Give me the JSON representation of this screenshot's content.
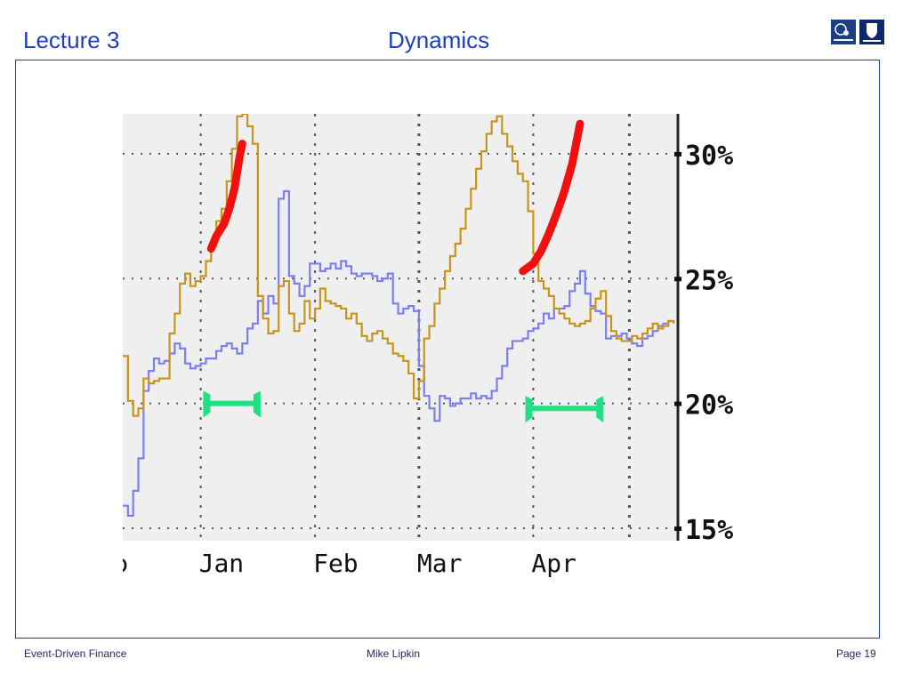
{
  "header": {
    "lecture": "Lecture 3",
    "title": "Dynamics"
  },
  "footer": {
    "course": "Event-Driven Finance",
    "author": "Mike Lipkin",
    "page": "Page 19"
  },
  "chart_data": {
    "type": "line",
    "title": "",
    "xlabel": "",
    "ylabel": "",
    "x_ticks": [
      "Jan",
      "Feb",
      "Mar",
      "Apr"
    ],
    "x_tick_positions": [
      15,
      37,
      57,
      79
    ],
    "y_ticks": [
      "30%",
      "25%",
      "20%",
      "15%"
    ],
    "y_tick_values": [
      30,
      25,
      20,
      15
    ],
    "xlim": [
      0,
      106.5
    ],
    "ylim": [
      14.5,
      31.6
    ],
    "grid": true,
    "series": [
      {
        "color": "#7b7ff0",
        "x": [
          0,
          1,
          2,
          3,
          4,
          5,
          6,
          7,
          8,
          9,
          10,
          11,
          12,
          13,
          14,
          15,
          16,
          17,
          18,
          19,
          20,
          21,
          22,
          23,
          24,
          25,
          26,
          27,
          28,
          29,
          30,
          31,
          32,
          33,
          34,
          35,
          36,
          37,
          38,
          39,
          40,
          41,
          42,
          43,
          44,
          45,
          46,
          47,
          48,
          49,
          50,
          51,
          52,
          53,
          54,
          55,
          56,
          57,
          58,
          59,
          60,
          61,
          62,
          63,
          64,
          65,
          66,
          67,
          68,
          69,
          70,
          71,
          72,
          73,
          74,
          75,
          76,
          77,
          78,
          79,
          80,
          81,
          82,
          83,
          84,
          85,
          86,
          87,
          88,
          89,
          90,
          91,
          92,
          93,
          94,
          95,
          96,
          97,
          98,
          99,
          100,
          101,
          102,
          103,
          104,
          105,
          106
        ],
        "values": [
          15.9,
          15.5,
          16.5,
          17.8,
          20.5,
          21.3,
          21.8,
          21.6,
          21.7,
          22.0,
          22.4,
          22.2,
          21.6,
          21.4,
          21.5,
          21.6,
          21.8,
          21.8,
          22.1,
          22.3,
          22.4,
          22.2,
          22.0,
          22.4,
          23.0,
          23.2,
          24.1,
          23.6,
          24.3,
          24.0,
          28.2,
          28.5,
          25.1,
          24.8,
          24.3,
          24.7,
          25.6,
          25.6,
          25.3,
          25.4,
          25.6,
          25.4,
          25.7,
          25.5,
          25.2,
          25.1,
          25.2,
          25.2,
          25.1,
          24.9,
          25.0,
          25.2,
          24.0,
          23.6,
          23.8,
          23.9,
          23.7,
          21.5,
          20.3,
          19.8,
          19.3,
          20.3,
          20.2,
          19.9,
          20.0,
          20.2,
          20.2,
          20.4,
          20.2,
          20.3,
          20.2,
          20.5,
          21.0,
          21.5,
          22.2,
          22.5,
          22.5,
          22.6,
          22.9,
          23.0,
          23.2,
          23.6,
          23.4,
          23.8,
          23.8,
          23.9,
          24.5,
          24.8,
          25.3,
          24.4,
          23.9,
          23.7,
          23.6,
          22.6,
          22.7,
          22.7,
          22.8,
          22.6,
          22.4,
          22.3,
          22.6,
          22.7,
          22.9,
          23.1,
          23.2,
          23.3,
          23.2
        ]
      },
      {
        "color": "#c8951c",
        "x": [
          0,
          1,
          2,
          3,
          4,
          5,
          6,
          7,
          8,
          9,
          10,
          11,
          12,
          13,
          14,
          15,
          16,
          17,
          18,
          19,
          20,
          21,
          22,
          23,
          24,
          25,
          26,
          27,
          28,
          29,
          30,
          31,
          32,
          33,
          34,
          35,
          36,
          37,
          38,
          39,
          40,
          41,
          42,
          43,
          44,
          45,
          46,
          47,
          48,
          49,
          50,
          51,
          52,
          53,
          54,
          55,
          56,
          57,
          58,
          59,
          60,
          61,
          62,
          63,
          64,
          65,
          66,
          67,
          68,
          69,
          70,
          71,
          72,
          73,
          74,
          75,
          76,
          77,
          78,
          79,
          80,
          81,
          82,
          83,
          84,
          85,
          86,
          87,
          88,
          89,
          90,
          91,
          92,
          93,
          94,
          95,
          96,
          97,
          98,
          99,
          100,
          101,
          102,
          103,
          104,
          105,
          106
        ],
        "values": [
          21.9,
          20.1,
          19.5,
          19.8,
          21.0,
          20.8,
          20.9,
          21.0,
          21.0,
          22.8,
          23.6,
          24.8,
          25.2,
          24.7,
          24.9,
          25.1,
          25.7,
          26.3,
          27.3,
          27.8,
          28.9,
          30.2,
          31.5,
          31.6,
          31.1,
          30.4,
          24.3,
          23.4,
          22.8,
          22.9,
          24.7,
          24.9,
          23.6,
          22.9,
          23.2,
          24.1,
          23.4,
          23.8,
          24.6,
          24.1,
          24.0,
          23.9,
          23.8,
          23.4,
          23.6,
          23.2,
          22.7,
          22.5,
          22.8,
          22.9,
          22.6,
          22.4,
          22.0,
          21.9,
          21.7,
          21.2,
          20.2,
          20.9,
          22.6,
          23.1,
          24.0,
          24.6,
          25.3,
          25.9,
          26.4,
          27.0,
          27.8,
          28.6,
          29.4,
          30.1,
          30.8,
          31.3,
          31.5,
          30.8,
          30.3,
          29.7,
          29.2,
          28.9,
          27.7,
          26.0,
          24.9,
          24.6,
          24.3,
          23.8,
          23.6,
          23.4,
          23.2,
          23.1,
          23.2,
          23.3,
          23.8,
          24.2,
          24.5,
          23.5,
          22.9,
          22.6,
          22.5,
          22.5,
          22.7,
          22.6,
          22.8,
          23.0,
          23.2,
          23.0,
          23.1,
          23.3,
          23.2
        ]
      }
    ],
    "annotations": [
      {
        "shape": "arc",
        "color": "#f01010",
        "x": [
          17,
          18,
          19.5,
          20.5,
          21.5,
          22.5,
          23
        ],
        "values": [
          26.2,
          26.7,
          27.2,
          27.8,
          28.6,
          29.9,
          30.4
        ]
      },
      {
        "shape": "arc",
        "color": "#f01010",
        "x": [
          77,
          79,
          80.5,
          82,
          83.5,
          85,
          86.5,
          88
        ],
        "values": [
          25.3,
          25.6,
          26.1,
          26.8,
          27.6,
          28.5,
          29.6,
          31.2
        ]
      },
      {
        "shape": "range",
        "color": "#1fe082",
        "x": [
          16,
          26
        ],
        "values": [
          20.0,
          20.0
        ]
      },
      {
        "shape": "range",
        "color": "#1fe082",
        "x": [
          78,
          92
        ],
        "values": [
          19.8,
          19.8
        ]
      }
    ]
  }
}
